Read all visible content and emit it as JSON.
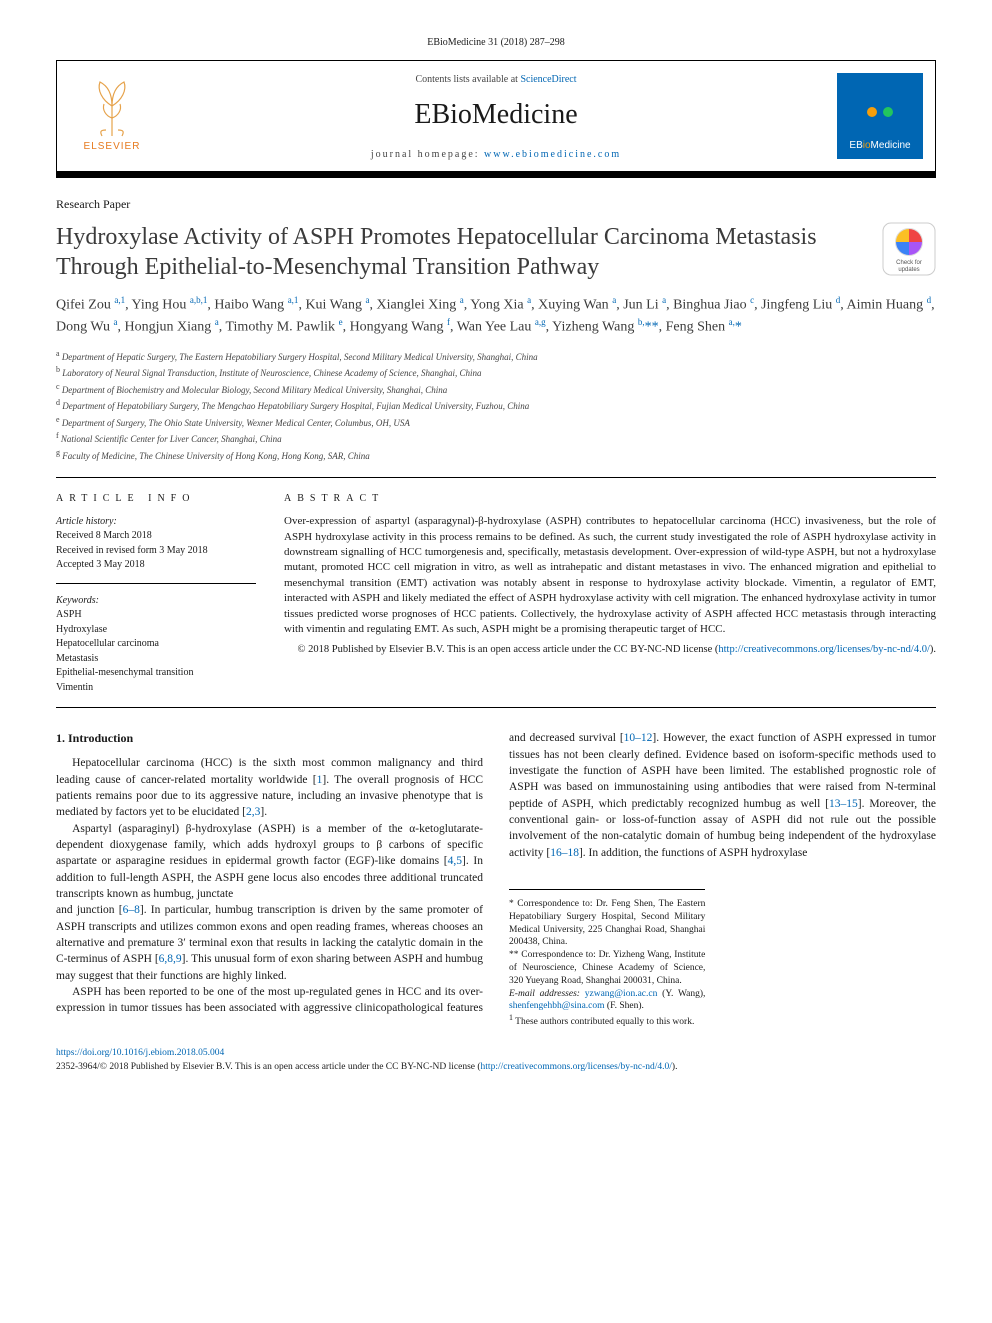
{
  "running_head": {
    "journal": "EBioMedicine",
    "vol": "31 (2018) 287–298"
  },
  "masthead": {
    "contents_prefix": "Contents lists available at ",
    "contents_link": "ScienceDirect",
    "journal": "EBioMedicine",
    "homepage_prefix": "journal homepage: ",
    "homepage_link": "www.ebiomedicine.com",
    "publisher_label": "ELSEVIER",
    "logo_label_html": "EB<b>io</b>Medicine"
  },
  "article_type": "Research Paper",
  "title": "Hydroxylase Activity of ASPH Promotes Hepatocellular Carcinoma Metastasis Through Epithelial-to-Mesenchymal Transition Pathway",
  "authors_html": "Qifei Zou <sup>a,1</sup>, Ying Hou <sup>a,b,1</sup>, Haibo Wang <sup>a,1</sup>, Kui Wang <sup>a</sup>, Xianglei Xing <sup>a</sup>, Yong Xia <sup>a</sup>, Xuying Wan <sup>a</sup>, Jun Li <sup>a</sup>, Binghua Jiao <sup>c</sup>, Jingfeng Liu <sup>d</sup>, Aimin Huang <sup>d</sup>, Dong Wu <sup>a</sup>, Hongjun Xiang <sup>a</sup>, Timothy M. Pawlik <sup>e</sup>, Hongyang Wang <sup>f</sup>, Wan Yee Lau <sup>a,g</sup>, Yizheng Wang <sup>b,</sup><span class='corr-star'>**</span>, Feng Shen <sup>a,</sup><span class='corr-star'>*</span>",
  "affiliations": [
    {
      "sup": "a",
      "text": "Department of Hepatic Surgery, The Eastern Hepatobiliary Surgery Hospital, Second Military Medical University, Shanghai, China"
    },
    {
      "sup": "b",
      "text": "Laboratory of Neural Signal Transduction, Institute of Neuroscience, Chinese Academy of Science, Shanghai, China"
    },
    {
      "sup": "c",
      "text": "Department of Biochemistry and Molecular Biology, Second Military Medical University, Shanghai, China"
    },
    {
      "sup": "d",
      "text": "Department of Hepatobiliary Surgery, The Mengchao Hepatobiliary Surgery Hospital, Fujian Medical University, Fuzhou, China"
    },
    {
      "sup": "e",
      "text": "Department of Surgery, The Ohio State University, Wexner Medical Center, Columbus, OH, USA"
    },
    {
      "sup": "f",
      "text": "National Scientific Center for Liver Cancer, Shanghai, China"
    },
    {
      "sup": "g",
      "text": "Faculty of Medicine, The Chinese University of Hong Kong, Hong Kong, SAR, China"
    }
  ],
  "info": {
    "heading": "ARTICLE INFO",
    "history_label": "Article history:",
    "history": [
      "Received 8 March 2018",
      "Received in revised form 3 May 2018",
      "Accepted 3 May 2018"
    ],
    "keywords_label": "Keywords:",
    "keywords": [
      "ASPH",
      "Hydroxylase",
      "Hepatocellular carcinoma",
      "Metastasis",
      "Epithelial-mesenchymal transition",
      "Vimentin"
    ]
  },
  "abstract": {
    "heading": "ABSTRACT",
    "text": "Over-expression of aspartyl (asparagynal)-β-hydroxylase (ASPH) contributes to hepatocellular carcinoma (HCC) invasiveness, but the role of ASPH hydroxylase activity in this process remains to be defined. As such, the current study investigated the role of ASPH hydroxylase activity in downstream signalling of HCC tumorgenesis and, specifically, metastasis development. Over-expression of wild-type ASPH, but not a hydroxylase mutant, promoted HCC cell migration in vitro, as well as intrahepatic and distant metastases in vivo. The enhanced migration and epithelial to mesenchymal transition (EMT) activation was notably absent in response to hydroxylase activity blockade. Vimentin, a regulator of EMT, interacted with ASPH and likely mediated the effect of ASPH hydroxylase activity with cell migration. The enhanced hydroxylase activity in tumor tissues predicted worse prognoses of HCC patients. Collectively, the hydroxylase activity of ASPH affected HCC metastasis through interacting with vimentin and regulating EMT. As such, ASPH might be a promising therapeutic target of HCC.",
    "copyright_prefix": "© 2018 Published by Elsevier B.V. This is an open access article under the CC BY-NC-ND license (",
    "copyright_link": "http://creativecommons.org/licenses/by-nc-nd/4.0/",
    "copyright_suffix": ")."
  },
  "body": {
    "section_heading": "1. Introduction",
    "p1": "Hepatocellular carcinoma (HCC) is the sixth most common malignancy and third leading cause of cancer-related mortality worldwide [1]. The overall prognosis of HCC patients remains poor due to its aggressive nature, including an invasive phenotype that is mediated by factors yet to be elucidated [2,3].",
    "p2": "Aspartyl (asparaginyl) β-hydroxylase (ASPH) is a member of the α-ketoglutarate-dependent dioxygenase family, which adds hydroxyl groups to β carbons of specific aspartate or asparagine residues in epidermal growth factor (EGF)-like domains [4,5]. In addition to full-length ASPH, the ASPH gene locus also encodes three additional truncated transcripts known as humbug, junctate",
    "p3": "and junction [6–8]. In particular, humbug transcription is driven by the same promoter of ASPH transcripts and utilizes common exons and open reading frames, whereas chooses an alternative and premature 3′ terminal exon that results in lacking the catalytic domain in the C-terminus of ASPH [6,8,9]. This unusual form of exon sharing between ASPH and humbug may suggest that their functions are highly linked.",
    "p4": "ASPH has been reported to be one of the most up-regulated genes in HCC and its over-expression in tumor tissues has been associated with aggressive clinicopathological features and decreased survival [10–12]. However, the exact function of ASPH expressed in tumor tissues has not been clearly defined. Evidence based on isoform-specific methods used to investigate the function of ASPH have been limited. The established prognostic role of ASPH was based on immunostaining using antibodies that were raised from N-terminal peptide of ASPH, which predictably recognized humbug as well [13–15]. Moreover, the conventional gain- or loss-of-function assay of ASPH did not rule out the possible involvement of the non-catalytic domain of humbug being independent of the hydroxylase activity [16–18]. In addition, the functions of ASPH hydroxylase",
    "cites": {
      "c1": "1",
      "c23": "2,3",
      "c45": "4,5",
      "c68": "6–8",
      "c689": "6,8,9",
      "c1012": "10–12",
      "c1315": "13–15",
      "c1618": "16–18"
    }
  },
  "footnotes": {
    "star1": "* Correspondence to: Dr. Feng Shen, The Eastern Hepatobiliary Surgery Hospital, Second Military Medical University, 225 Changhai Road, Shanghai 200438, China.",
    "star2": "** Correspondence to: Dr. Yizheng Wang, Institute of Neuroscience, Chinese Academy of Science, 320 Yueyang Road, Shanghai 200031, China.",
    "emails_label": "E-mail addresses:",
    "email1": "yzwang@ion.ac.cn",
    "email1_paren": " (Y. Wang), ",
    "email2": "shenfengehbh@sina.com",
    "email2_paren": " (F. Shen).",
    "note1": "These authors contributed equally to this work."
  },
  "footer": {
    "doi": "https://doi.org/10.1016/j.ebiom.2018.05.004",
    "issn_line": "2352-3964/© 2018 Published by Elsevier B.V. This is an open access article under the CC BY-NC-ND license (",
    "issn_link": "http://creativecommons.org/licenses/by-nc-nd/4.0/",
    "issn_suffix": ")."
  },
  "colors": {
    "link": "#0066b3",
    "accent_orange": "#e67a1f",
    "text": "#1a1a1a"
  }
}
